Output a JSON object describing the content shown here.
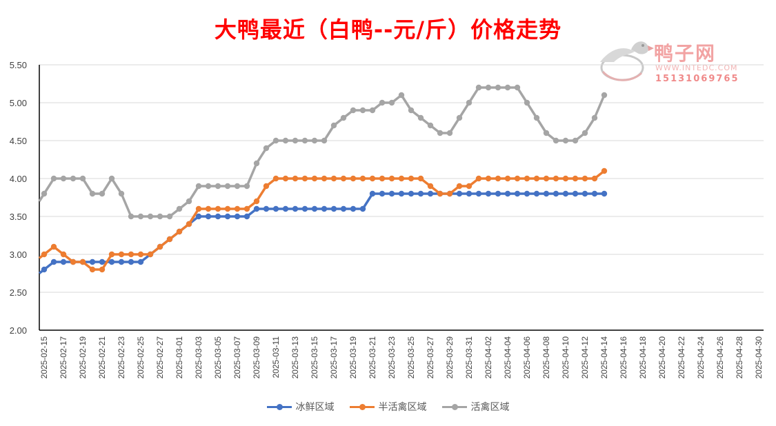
{
  "title": "大鸭最近（白鸭--元/斤）价格走势",
  "watermark": {
    "brand": "鸭子网",
    "site": "WWW.INTEDC.COM",
    "phone": "15131069765"
  },
  "chart_data": {
    "type": "line",
    "title": "大鸭最近（白鸭--元/斤）价格走势",
    "xlabel": "",
    "ylabel": "",
    "ylim": [
      2.0,
      5.5
    ],
    "yticks": [
      "2.00",
      "2.50",
      "3.00",
      "3.50",
      "4.00",
      "4.50",
      "5.00",
      "5.50"
    ],
    "x_start": "2025-02-15",
    "x_end": "2025-04-30",
    "grid": true,
    "legend_position": "bottom",
    "x": [
      "2025-02-15",
      "2025-02-16",
      "2025-02-17",
      "2025-02-18",
      "2025-02-19",
      "2025-02-20",
      "2025-02-21",
      "2025-02-22",
      "2025-02-23",
      "2025-02-24",
      "2025-02-25",
      "2025-02-26",
      "2025-02-27",
      "2025-02-28",
      "2025-03-01",
      "2025-03-02",
      "2025-03-03",
      "2025-03-04",
      "2025-03-05",
      "2025-03-06",
      "2025-03-07",
      "2025-03-08",
      "2025-03-09",
      "2025-03-10",
      "2025-03-11",
      "2025-03-12",
      "2025-03-13",
      "2025-03-14",
      "2025-03-15",
      "2025-03-16",
      "2025-03-17",
      "2025-03-18",
      "2025-03-19",
      "2025-03-20",
      "2025-03-21",
      "2025-03-22",
      "2025-03-23",
      "2025-03-24",
      "2025-03-25",
      "2025-03-26",
      "2025-03-27",
      "2025-03-28",
      "2025-03-29",
      "2025-03-30",
      "2025-03-31",
      "2025-04-01",
      "2025-04-02",
      "2025-04-03",
      "2025-04-04",
      "2025-04-05",
      "2025-04-06",
      "2025-04-07",
      "2025-04-08",
      "2025-04-09",
      "2025-04-10",
      "2025-04-11",
      "2025-04-12",
      "2025-04-13",
      "2025-04-14"
    ],
    "xtick_labels": [
      "2025-02-15",
      "2025-02-17",
      "2025-02-19",
      "2025-02-21",
      "2025-02-23",
      "2025-02-25",
      "2025-02-27",
      "2025-03-01",
      "2025-03-03",
      "2025-03-05",
      "2025-03-07",
      "2025-03-09",
      "2025-03-11",
      "2025-03-13",
      "2025-03-15",
      "2025-03-17",
      "2025-03-19",
      "2025-03-21",
      "2025-03-23",
      "2025-03-25",
      "2025-03-27",
      "2025-03-29",
      "2025-03-31",
      "2025-04-02",
      "2025-04-04",
      "2025-04-06",
      "2025-04-08",
      "2025-04-10",
      "2025-04-12",
      "2025-04-14",
      "2025-04-16",
      "2025-04-18",
      "2025-04-20",
      "2025-04-22",
      "2025-04-24",
      "2025-04-26",
      "2025-04-28",
      "2025-04-30"
    ],
    "series": [
      {
        "name": "冰鲜区域",
        "color": "#4472c4",
        "values": [
          2.8,
          2.9,
          2.9,
          2.9,
          2.9,
          2.9,
          2.9,
          2.9,
          2.9,
          2.9,
          2.9,
          3.0,
          3.1,
          3.2,
          3.3,
          3.4,
          3.5,
          3.5,
          3.5,
          3.5,
          3.5,
          3.5,
          3.6,
          3.6,
          3.6,
          3.6,
          3.6,
          3.6,
          3.6,
          3.6,
          3.6,
          3.6,
          3.6,
          3.6,
          3.8,
          3.8,
          3.8,
          3.8,
          3.8,
          3.8,
          3.8,
          3.8,
          3.8,
          3.8,
          3.8,
          3.8,
          3.8,
          3.8,
          3.8,
          3.8,
          3.8,
          3.8,
          3.8,
          3.8,
          3.8,
          3.8,
          3.8,
          3.8,
          3.8
        ]
      },
      {
        "name": "半活禽区域",
        "color": "#ed7d31",
        "values": [
          3.0,
          3.1,
          3.0,
          2.9,
          2.9,
          2.8,
          2.8,
          3.0,
          3.0,
          3.0,
          3.0,
          3.0,
          3.1,
          3.2,
          3.3,
          3.4,
          3.6,
          3.6,
          3.6,
          3.6,
          3.6,
          3.6,
          3.7,
          3.9,
          4.0,
          4.0,
          4.0,
          4.0,
          4.0,
          4.0,
          4.0,
          4.0,
          4.0,
          4.0,
          4.0,
          4.0,
          4.0,
          4.0,
          4.0,
          4.0,
          3.9,
          3.8,
          3.8,
          3.9,
          3.9,
          4.0,
          4.0,
          4.0,
          4.0,
          4.0,
          4.0,
          4.0,
          4.0,
          4.0,
          4.0,
          4.0,
          4.0,
          4.0,
          4.1
        ]
      },
      {
        "name": "活禽区域",
        "color": "#a5a5a5",
        "values": [
          3.8,
          4.0,
          4.0,
          4.0,
          4.0,
          3.8,
          3.8,
          4.0,
          3.8,
          3.5,
          3.5,
          3.5,
          3.5,
          3.5,
          3.6,
          3.7,
          3.9,
          3.9,
          3.9,
          3.9,
          3.9,
          3.9,
          4.2,
          4.4,
          4.5,
          4.5,
          4.5,
          4.5,
          4.5,
          4.5,
          4.7,
          4.8,
          4.9,
          4.9,
          4.9,
          5.0,
          5.0,
          5.1,
          4.9,
          4.8,
          4.7,
          4.6,
          4.6,
          4.8,
          5.0,
          5.2,
          5.2,
          5.2,
          5.2,
          5.2,
          5.0,
          4.8,
          4.6,
          4.5,
          4.5,
          4.5,
          4.6,
          4.8,
          5.1
        ]
      }
    ]
  }
}
